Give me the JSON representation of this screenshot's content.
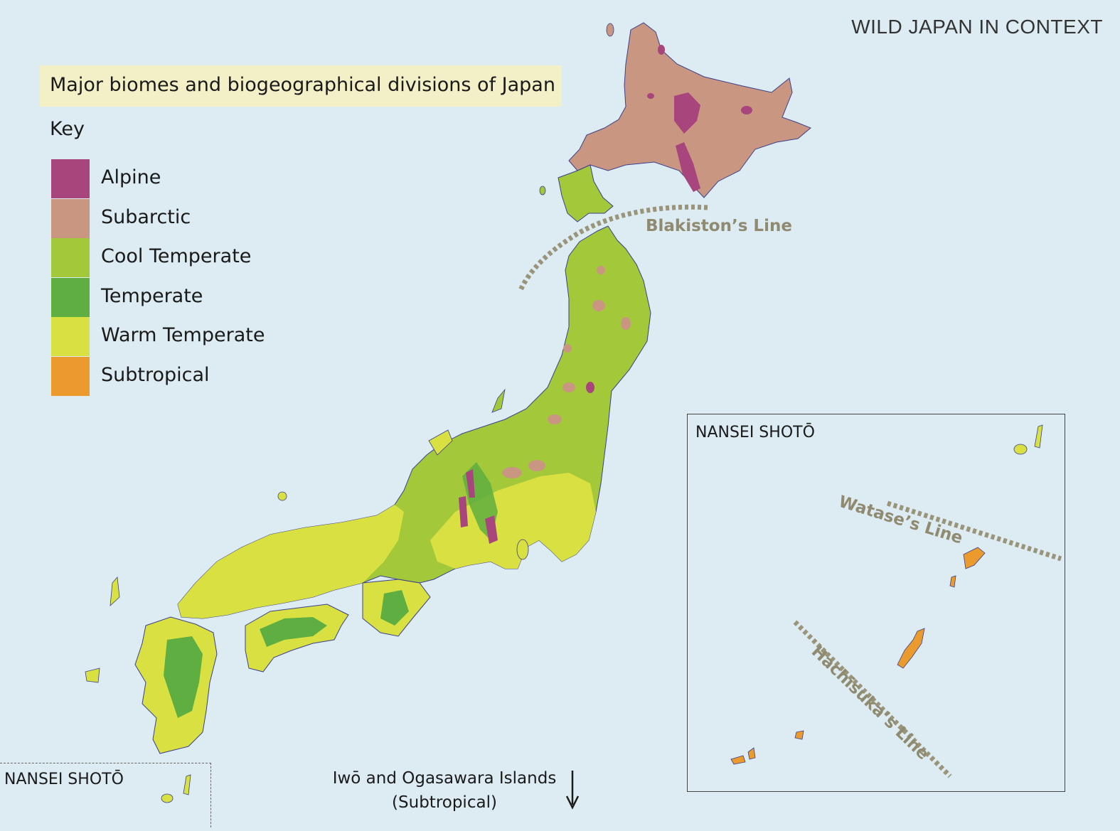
{
  "running_head": "WILD JAPAN IN CONTEXT",
  "title": "Major biomes and biogeographical divisions of Japan",
  "key": {
    "title": "Key",
    "items": [
      {
        "label": "Alpine",
        "color": "#a8457c"
      },
      {
        "label": "Subarctic",
        "color": "#c99781"
      },
      {
        "label": "Cool Temperate",
        "color": "#a3c83a"
      },
      {
        "label": "Temperate",
        "color": "#5fae41"
      },
      {
        "label": "Warm Temperate",
        "color": "#d9e041"
      },
      {
        "label": "Subtropical",
        "color": "#eb9a2e"
      }
    ]
  },
  "lines": {
    "blakiston": "Blakiston’s Line",
    "watase": "Watase’s Line",
    "hachisuka": "Hachisuka’s Line"
  },
  "inset": {
    "title": "NANSEI SHOTŌ",
    "small_title": "NANSEI SHOTŌ"
  },
  "iwo": {
    "line1": "Iwō and Ogasawara Islands",
    "line2": "(Subtropical)",
    "arrow_icon": "down-arrow-icon"
  },
  "colors": {
    "sea": "#dcecf2",
    "line": "#8f8a70",
    "coast": "#3b3f8c"
  }
}
